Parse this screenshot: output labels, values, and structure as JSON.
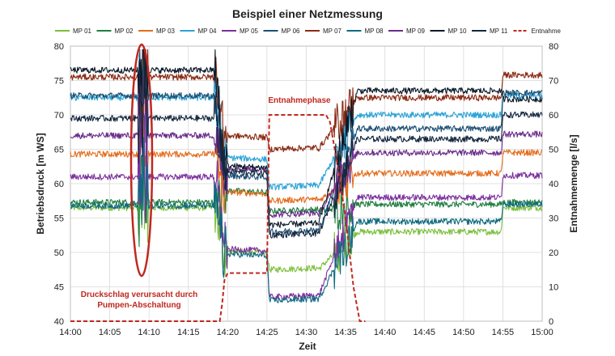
{
  "chart_data": {
    "type": "line",
    "title": "Beispiel einer Netzmessung",
    "xlabel": "Zeit",
    "ylabel_left": "Betriebsdruck [m WS]",
    "ylabel_right": "Entnahmemenge [l/s]",
    "x_ticks": [
      "14:00",
      "14:05",
      "14:10",
      "14:15",
      "14:20",
      "14:25",
      "14:30",
      "14:35",
      "14:40",
      "14:45",
      "14:50",
      "14:55",
      "15:00"
    ],
    "xlim_minutes": [
      0,
      60
    ],
    "ylim_left": [
      40,
      80
    ],
    "ylim_right": [
      0,
      80
    ],
    "y_ticks_left": [
      "40",
      "45",
      "50",
      "55",
      "60",
      "65",
      "70",
      "75",
      "80"
    ],
    "y_ticks_right": [
      "0",
      "10",
      "20",
      "30",
      "40",
      "50",
      "60",
      "70",
      "80"
    ],
    "grid": true,
    "legend_position": "top",
    "series": [
      {
        "name": "MP 01",
        "color": "#7bbf3a",
        "p1": 56.5,
        "p2": 50.2,
        "p3": 47.5,
        "p4": 53.0,
        "p5": 56.5
      },
      {
        "name": "MP 02",
        "color": "#1f7f3f",
        "p1": 57.3,
        "p2": 59.0,
        "p3": 56.0,
        "p4": 57.0,
        "p5": 57.3
      },
      {
        "name": "MP 03",
        "color": "#e36c1b",
        "p1": 64.3,
        "p2": 58.8,
        "p3": 57.5,
        "p4": 61.5,
        "p5": 64.5
      },
      {
        "name": "MP 04",
        "color": "#2aa3d6",
        "p1": 72.5,
        "p2": 63.8,
        "p3": 59.5,
        "p4": 70.0,
        "p5": 72.8
      },
      {
        "name": "MP 05",
        "color": "#7b2f9e",
        "p1": 61.0,
        "p2": 50.5,
        "p3": 43.5,
        "p4": 58.0,
        "p5": 61.2
      },
      {
        "name": "MP 06",
        "color": "#1e4f73",
        "p1": 72.8,
        "p2": 61.2,
        "p3": 53.0,
        "p4": 68.0,
        "p5": 73.2
      },
      {
        "name": "MP 07",
        "color": "#8b2a12",
        "p1": 75.5,
        "p2": 67.0,
        "p3": 65.0,
        "p4": 72.5,
        "p5": 75.8
      },
      {
        "name": "MP 08",
        "color": "#0f6a80",
        "p1": 56.8,
        "p2": 49.8,
        "p3": 43.0,
        "p4": 54.5,
        "p5": 57.0
      },
      {
        "name": "MP 09",
        "color": "#6a2c8a",
        "p1": 67.0,
        "p2": 62.3,
        "p3": 55.5,
        "p4": 64.5,
        "p5": 67.2
      },
      {
        "name": "MP 10",
        "color": "#0b1a2a",
        "p1": 76.5,
        "p2": 62.6,
        "p3": 54.0,
        "p4": 73.5,
        "p5": 72.3
      },
      {
        "name": "MP 11",
        "color": "#14273f",
        "p1": 69.5,
        "p2": 61.8,
        "p3": 52.5,
        "p4": 66.5,
        "p5": 70.0
      }
    ],
    "withdrawal": {
      "name": "Entnahme",
      "color": "#c0281f",
      "points": [
        [
          0,
          0
        ],
        [
          19,
          0
        ],
        [
          19.3,
          5
        ],
        [
          19.6,
          12
        ],
        [
          20,
          14
        ],
        [
          25,
          14
        ],
        [
          25.3,
          60
        ],
        [
          32.5,
          60
        ],
        [
          33,
          58
        ],
        [
          34,
          45
        ],
        [
          35,
          30
        ],
        [
          36,
          10
        ],
        [
          36.8,
          0
        ],
        [
          37.5,
          0
        ]
      ]
    },
    "annotations": {
      "phase_label": "Entnahmephase",
      "water_hammer_line1": "Druckschlag verursacht durch",
      "water_hammer_line2": "Pumpen-Abschaltung"
    }
  }
}
